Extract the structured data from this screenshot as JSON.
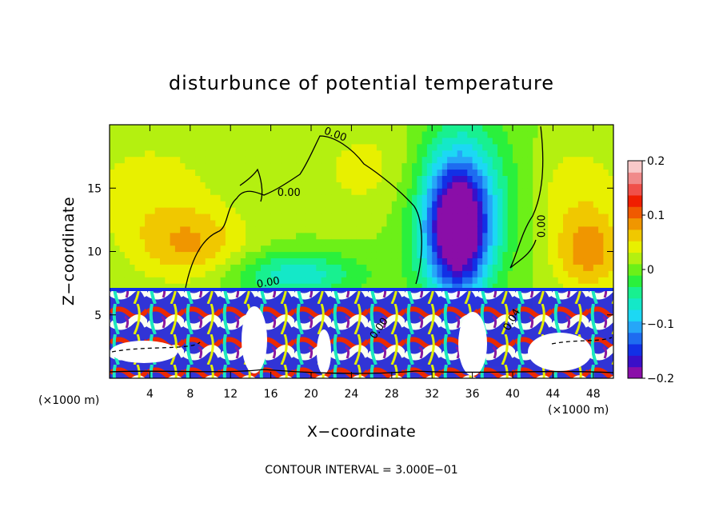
{
  "chart_data": {
    "type": "heatmap",
    "title": "disturbunce of potential temperature",
    "xlabel": "X−coordinate",
    "ylabel": "Z−coordinate",
    "x_unit": "(×1000 m)",
    "z_unit": "(×1000 m)",
    "footer": "CONTOUR INTERVAL = 3.000E−01",
    "xlim": [
      0,
      50
    ],
    "ylim": [
      0,
      20
    ],
    "x_ticks": [
      {
        "value": 4,
        "label": "4"
      },
      {
        "value": 8,
        "label": "8"
      },
      {
        "value": 12,
        "label": "12"
      },
      {
        "value": 16,
        "label": "16"
      },
      {
        "value": 20,
        "label": "20"
      },
      {
        "value": 24,
        "label": "24"
      },
      {
        "value": 28,
        "label": "28"
      },
      {
        "value": 32,
        "label": "32"
      },
      {
        "value": 36,
        "label": "36"
      },
      {
        "value": 40,
        "label": "40"
      },
      {
        "value": 44,
        "label": "44"
      },
      {
        "value": 48,
        "label": "48"
      }
    ],
    "y_ticks": [
      {
        "value": 5,
        "label": "5"
      },
      {
        "value": 10,
        "label": "10"
      },
      {
        "value": 15,
        "label": "15"
      }
    ],
    "colorbar": {
      "range": [
        -0.2,
        0.2
      ],
      "ticks": [
        {
          "value": 0.2,
          "label": "0.2"
        },
        {
          "value": 0.1,
          "label": "0.1"
        },
        {
          "value": 0,
          "label": "0"
        },
        {
          "value": -0.1,
          "label": "−0.1"
        },
        {
          "value": -0.2,
          "label": "−0.2"
        }
      ],
      "colors": [
        "#8a0ea8",
        "#3a0fc8",
        "#1230e6",
        "#1e6cf0",
        "#26a6f8",
        "#1cd8f4",
        "#14e8c8",
        "#18f090",
        "#2af03c",
        "#6cf018",
        "#b4f010",
        "#e8f000",
        "#f0c800",
        "#f09600",
        "#f05a00",
        "#f01e00",
        "#f0504a",
        "#f08a8a",
        "#f8c8c8"
      ]
    },
    "contour_labels": [
      {
        "x": 22.3,
        "z": 19.0,
        "text": "0.00",
        "rotate": 20
      },
      {
        "x": 17.8,
        "z": 14.4,
        "text": "0.00",
        "rotate": 0
      },
      {
        "x": 43.2,
        "z": 12.0,
        "text": "0.00",
        "rotate": -90
      },
      {
        "x": 15.8,
        "z": 7.3,
        "text": "0.00",
        "rotate": -10
      },
      {
        "x": 27.0,
        "z": 3.8,
        "text": "0.00",
        "rotate": -55
      },
      {
        "x": 40.2,
        "z": 4.5,
        "text": "0.04",
        "rotate": -60
      }
    ],
    "field_features": [
      {
        "x": 34.5,
        "z": 11.5,
        "amp": -0.21,
        "sx": 2.2,
        "sz": 3.8
      },
      {
        "x": 35.0,
        "z": 14.5,
        "amp": -0.08,
        "sx": 4.0,
        "sz": 4.5
      },
      {
        "x": 18.5,
        "z": 8.2,
        "amp": -0.08,
        "sx": 4.5,
        "sz": 1.3
      },
      {
        "x": 8.0,
        "z": 10.5,
        "amp": 0.06,
        "sx": 4.0,
        "sz": 2.0
      },
      {
        "x": 47.5,
        "z": 10.0,
        "amp": 0.07,
        "sx": 2.5,
        "sz": 2.2
      },
      {
        "x": 4.0,
        "z": 15.0,
        "amp": 0.03,
        "sx": 5.0,
        "sz": 3.0
      },
      {
        "x": 27.0,
        "z": 16.5,
        "amp": 0.03,
        "sx": 5.0,
        "sz": 3.0
      },
      {
        "x": 46.0,
        "z": 15.0,
        "amp": 0.03,
        "sx": 4.0,
        "sz": 3.0
      }
    ]
  }
}
